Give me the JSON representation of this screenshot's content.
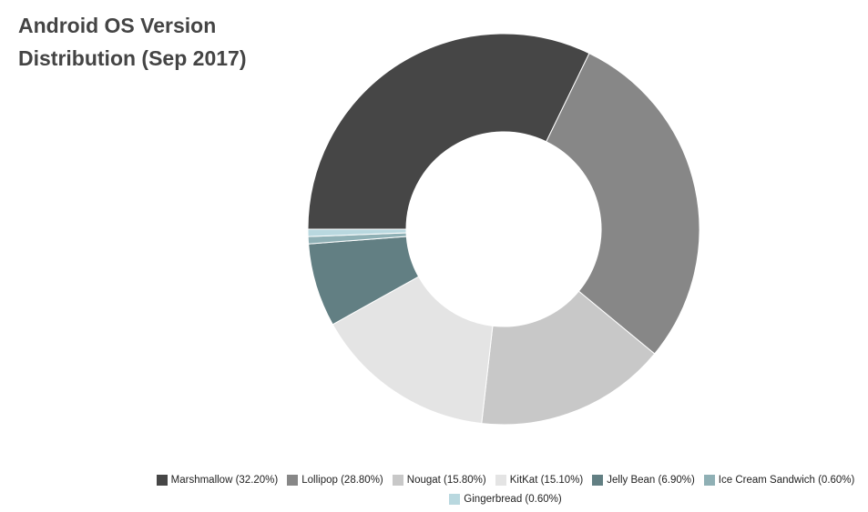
{
  "chart_data": {
    "type": "donut",
    "title": "Android OS Version Distribution (Sep 2017)",
    "categories": [
      "Marshmallow (32.20%)",
      "Lollipop (28.80%)",
      "Nougat (15.80%)",
      "KitKat (15.10%)",
      "Jelly Bean (6.90%)",
      "Ice Cream Sandwich (0.60%)",
      "Gingerbread (0.60%)"
    ],
    "values": [
      32.2,
      28.8,
      15.8,
      15.1,
      6.9,
      0.6,
      0.6
    ],
    "colors": [
      "#464646",
      "#878787",
      "#c8c8c8",
      "#e4e4e4",
      "#627f83",
      "#8fb0b5",
      "#b9d8df"
    ]
  }
}
